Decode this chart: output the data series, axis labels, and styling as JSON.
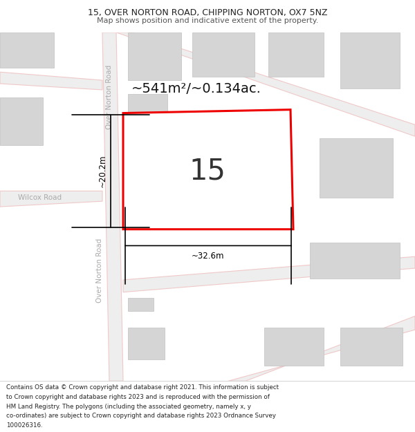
{
  "title_line1": "15, OVER NORTON ROAD, CHIPPING NORTON, OX7 5NZ",
  "title_line2": "Map shows position and indicative extent of the property.",
  "area_label": "~541m²/~0.134ac.",
  "number_label": "15",
  "dim_width": "~32.6m",
  "dim_height": "~20.2m",
  "road_label_top": "Over Norton Road",
  "road_label_bot": "Over Norton Road",
  "road_wilcox": "Wilcox Road",
  "footer_lines": [
    "Contains OS data © Crown copyright and database right 2021. This information is subject",
    "to Crown copyright and database rights 2023 and is reproduced with the permission of",
    "HM Land Registry. The polygons (including the associated geometry, namely x, y",
    "co-ordinates) are subject to Crown copyright and database rights 2023 Ordnance Survey",
    "100026316."
  ],
  "map_bg": "#f2f2f2",
  "building_fill": "#d5d5d5",
  "building_edge": "#c0c0c0",
  "road_fill": "#eeeeee",
  "road_pink": "#f0c8c8",
  "plot_fill": "#ffffff",
  "plot_border": "#ee0000",
  "label_color": "#aaaaaa",
  "text_dark": "#222222",
  "title_bg": "#ffffff",
  "footer_bg": "#ffffff"
}
